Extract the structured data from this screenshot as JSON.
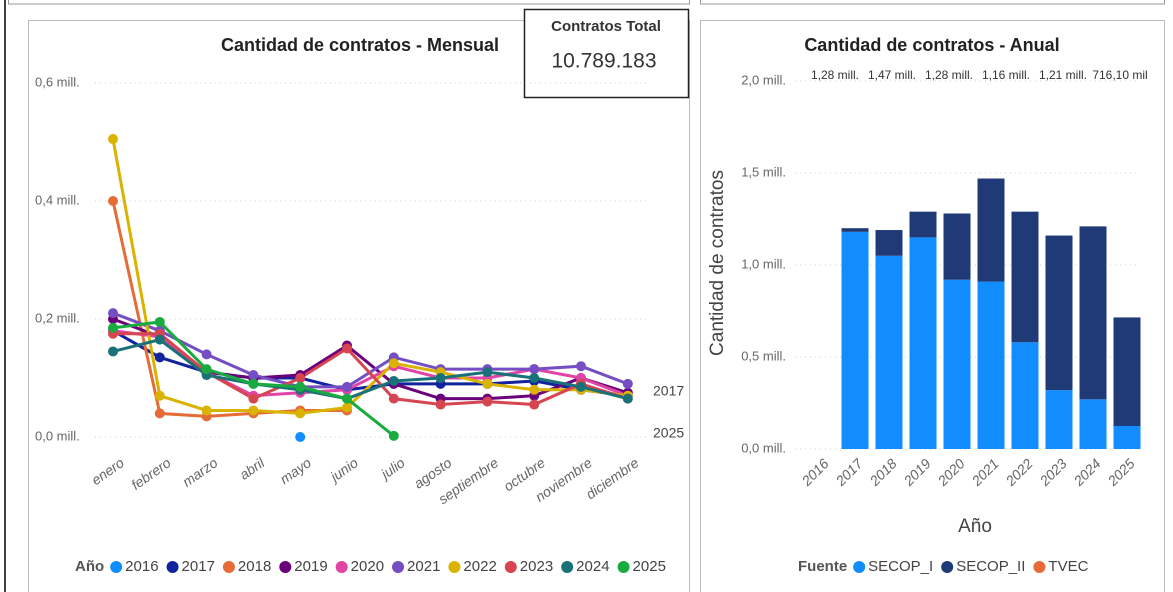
{
  "card": {
    "title": "Contratos Total",
    "value": "10.789.183"
  },
  "chart_data": [
    {
      "type": "line",
      "title": "Cantidad de contratos - Mensual",
      "categories": [
        "enero",
        "febrero",
        "marzo",
        "abril",
        "mayo",
        "junio",
        "julio",
        "agosto",
        "septiembre",
        "octubre",
        "noviembre",
        "diciembre"
      ],
      "series": [
        {
          "name": "2016",
          "color": "#118dff",
          "values": [
            null,
            null,
            null,
            null,
            0.0,
            null,
            null,
            null,
            null,
            null,
            null,
            null
          ]
        },
        {
          "name": "2017",
          "color": "#12239e",
          "values": [
            0.18,
            0.135,
            0.11,
            0.1,
            0.1,
            0.08,
            0.09,
            0.09,
            0.09,
            0.095,
            0.08,
            0.07
          ]
        },
        {
          "name": "2018",
          "color": "#e66c37",
          "values": [
            0.4,
            0.04,
            0.035,
            0.04,
            0.045,
            0.045,
            null,
            null,
            null,
            null,
            null,
            null
          ]
        },
        {
          "name": "2019",
          "color": "#6b007b",
          "values": [
            0.2,
            0.17,
            0.11,
            0.1,
            0.105,
            0.155,
            0.09,
            0.065,
            0.065,
            0.07,
            0.1,
            0.075
          ]
        },
        {
          "name": "2020",
          "color": "#e044a7",
          "values": [
            0.18,
            0.17,
            0.11,
            0.07,
            0.075,
            0.08,
            0.12,
            0.1,
            0.1,
            0.115,
            0.1,
            0.07
          ]
        },
        {
          "name": "2021",
          "color": "#744ec2",
          "values": [
            0.21,
            0.18,
            0.14,
            0.105,
            0.085,
            0.085,
            0.135,
            0.115,
            0.115,
            0.115,
            0.12,
            0.09
          ]
        },
        {
          "name": "2022",
          "color": "#d9b300",
          "values": [
            0.505,
            0.07,
            0.045,
            0.045,
            0.04,
            0.05,
            0.125,
            0.11,
            0.09,
            0.08,
            0.08,
            0.07
          ]
        },
        {
          "name": "2023",
          "color": "#d64550",
          "values": [
            0.175,
            0.175,
            0.11,
            0.065,
            0.1,
            0.15,
            0.065,
            0.055,
            0.06,
            0.055,
            0.09,
            0.065
          ]
        },
        {
          "name": "2024",
          "color": "#197278",
          "values": [
            0.145,
            0.165,
            0.105,
            0.09,
            0.08,
            0.065,
            0.095,
            0.1,
            0.11,
            0.1,
            0.085,
            0.065
          ]
        },
        {
          "name": "2025",
          "color": "#1aab40",
          "values": [
            0.185,
            0.195,
            0.115,
            0.09,
            0.085,
            0.065,
            0.002,
            null,
            null,
            null,
            null,
            null
          ]
        }
      ],
      "ylim": [
        0,
        0.6
      ],
      "yticks": [
        {
          "value": 0,
          "label": "0,0 mill."
        },
        {
          "value": 0.2,
          "label": "0,2 mill."
        },
        {
          "value": 0.4,
          "label": "0,4 mill."
        },
        {
          "value": 0.6,
          "label": "0,6 mill."
        }
      ],
      "grid": true,
      "annotations": [
        "2017",
        "2025"
      ],
      "legend_title": "Año"
    },
    {
      "type": "bar",
      "stacked": true,
      "title": "Cantidad de contratos - Anual",
      "categories": [
        "2016",
        "2017",
        "2018",
        "2019",
        "2020",
        "2021",
        "2022",
        "2023",
        "2024",
        "2025"
      ],
      "series": [
        {
          "name": "SECOP_I",
          "color": "#118dff",
          "values": [
            0,
            1.18,
            1.05,
            1.15,
            0.92,
            0.91,
            0.58,
            0.32,
            0.27,
            0.125
          ]
        },
        {
          "name": "SECOP_II",
          "color": "#203a77",
          "values": [
            0,
            0.02,
            0.14,
            0.14,
            0.36,
            0.56,
            0.71,
            0.84,
            0.94,
            0.59
          ]
        },
        {
          "name": "TVEC",
          "color": "#e66c37",
          "values": [
            0,
            0,
            0,
            0,
            0,
            0,
            0,
            0,
            0,
            0
          ]
        }
      ],
      "ylim": [
        0,
        2.0
      ],
      "yticks": [
        {
          "value": 0,
          "label": "0,0 mill."
        },
        {
          "value": 0.5,
          "label": "0,5 mill."
        },
        {
          "value": 1.0,
          "label": "1,0 mill."
        },
        {
          "value": 1.5,
          "label": "1,5 mill."
        },
        {
          "value": 2.0,
          "label": "2,0 mill."
        }
      ],
      "grid": true,
      "ylabel": "Cantidad de contratos",
      "xlabel": "Año",
      "legend_title": "Fuente",
      "total_labels": [
        "1,28 mill.",
        "1,47 mill.",
        "1,28 mill.",
        "1,16 mill.",
        "1,21 mill.",
        "716,10 mil"
      ]
    }
  ]
}
